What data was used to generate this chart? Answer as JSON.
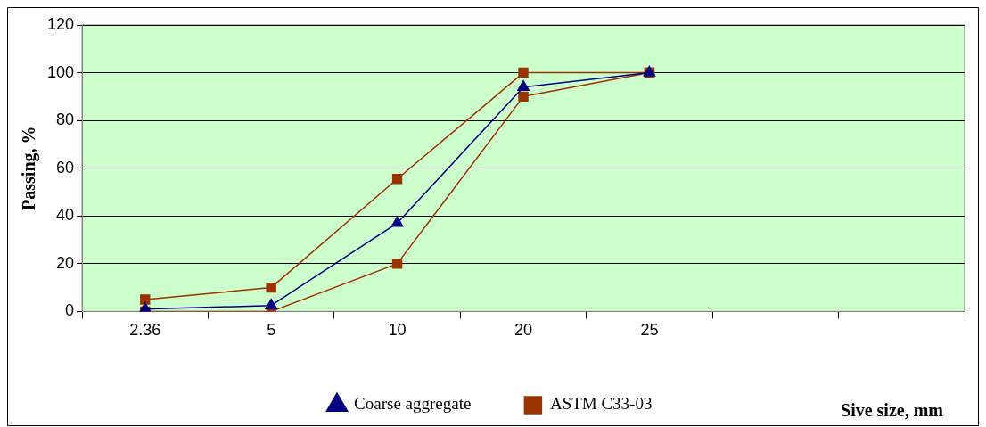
{
  "chart_data": {
    "type": "line",
    "xlabel": "Sive size, mm",
    "ylabel": "Passing, %",
    "categories": [
      "2.36",
      "5",
      "10",
      "20",
      "25",
      null,
      null
    ],
    "series": [
      {
        "name": "Coarse aggregate",
        "color": "#000080",
        "marker": "triangle",
        "values": [
          1,
          2.5,
          37,
          94,
          100,
          null,
          null
        ]
      },
      {
        "name": "ASTM C33-03",
        "color": "#993300",
        "marker": "square",
        "values": [
          5,
          10,
          55.5,
          100,
          100,
          null,
          null
        ]
      },
      {
        "color": "#993300",
        "marker": "square",
        "values": [
          0,
          0,
          20,
          90,
          100,
          null,
          null
        ]
      }
    ],
    "ylim": [
      0,
      120
    ],
    "yticks": [
      0,
      20,
      40,
      60,
      80,
      100,
      120
    ],
    "grid": "y",
    "legend": "bottom"
  }
}
